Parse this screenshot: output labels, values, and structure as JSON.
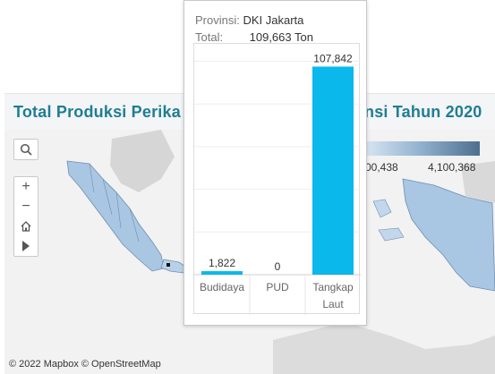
{
  "page_title": {
    "left": "Total Produksi Perika",
    "right": "nsi Tahun 2020"
  },
  "map": {
    "attribution": "© 2022 Mapbox © OpenStreetMap",
    "controls": {
      "search": "search-icon",
      "zoom_in": "+",
      "zoom_out": "−",
      "home": "home-icon",
      "toggle": "play-icon"
    },
    "legend": {
      "min_label": "00,438",
      "max_label": "4,100,368",
      "color_low": "#dce8f4",
      "color_high": "#4e6f8f"
    }
  },
  "tooltip": {
    "province_key": "Provinsi:",
    "province_value": "DKI Jakarta",
    "total_key": "Total:",
    "total_value": "109,663 Ton"
  },
  "chart_data": {
    "type": "bar",
    "categories": [
      "Budidaya",
      "PUD",
      "Tangkap Laut"
    ],
    "category_lines": [
      [
        "Budidaya"
      ],
      [
        "PUD"
      ],
      [
        "Tangkap",
        "Laut"
      ]
    ],
    "values": [
      1822,
      0,
      107842
    ],
    "value_labels": [
      "1,822",
      "0",
      "107,842"
    ],
    "ylim": [
      0,
      115000
    ],
    "grid": true,
    "bar_color": "#0ab8ec"
  }
}
